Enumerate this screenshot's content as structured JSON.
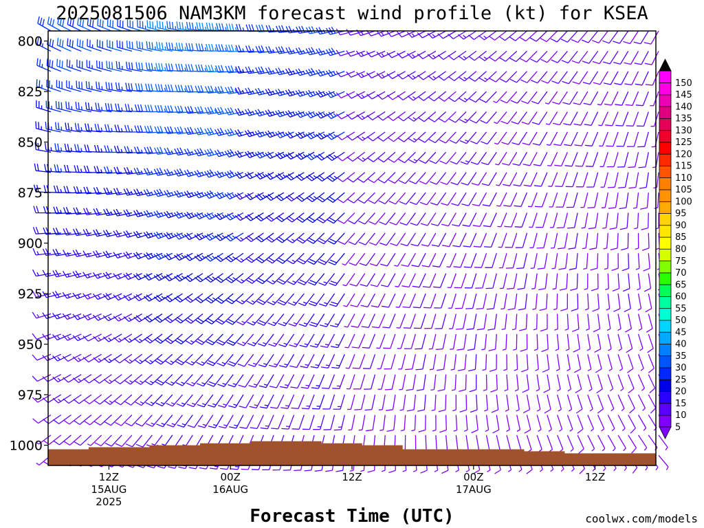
{
  "chart_data": {
    "type": "wind_barb_time_height",
    "title": "2025081506 NAM3KM forecast wind profile (kt) for KSEA",
    "xlabel": "Forecast Time (UTC)",
    "ylabel": "",
    "credit": "coolwx.com/models",
    "y_axis": {
      "reversed": true,
      "range": [
        1010,
        795
      ],
      "unit": "hPa",
      "ticks": [
        800,
        825,
        850,
        875,
        900,
        925,
        950,
        975,
        1000
      ]
    },
    "x_axis": {
      "range_forecast_hour": [
        0,
        60
      ],
      "ticks": [
        {
          "hour": 6,
          "lines": [
            "12Z",
            "15AUG",
            "2025"
          ]
        },
        {
          "hour": 18,
          "lines": [
            "00Z",
            "16AUG"
          ]
        },
        {
          "hour": 30,
          "lines": [
            "12Z"
          ]
        },
        {
          "hour": 42,
          "lines": [
            "00Z",
            "17AUG"
          ]
        },
        {
          "hour": 54,
          "lines": [
            "12Z"
          ]
        }
      ]
    },
    "barbs": {
      "forecast_hours": {
        "start": 0,
        "end": 60,
        "step": 1
      },
      "pressure_levels_hpa": {
        "start": 795,
        "end": 1005,
        "step": 10
      },
      "speed_field_kt": [
        {
          "from_hour": 0,
          "to_hour": 10,
          "top": 30,
          "bottom": 8
        },
        {
          "from_hour": 10,
          "to_hour": 20,
          "top": 35,
          "bottom": 12
        },
        {
          "from_hour": 20,
          "to_hour": 30,
          "top": 28,
          "bottom": 10
        },
        {
          "from_hour": 30,
          "to_hour": 45,
          "top": 12,
          "bottom": 7
        },
        {
          "from_hour": 45,
          "to_hour": 60,
          "top": 10,
          "bottom": 6
        }
      ],
      "direction_note": "northwesterly aloft early, backing to southerly/southwesterly late and near surface"
    },
    "terrain_surface_pressure_hpa": [
      {
        "hour": 0,
        "p": 1002
      },
      {
        "hour": 4,
        "p": 1001
      },
      {
        "hour": 10,
        "p": 1000
      },
      {
        "hour": 15,
        "p": 999
      },
      {
        "hour": 20,
        "p": 998
      },
      {
        "hour": 23,
        "p": 998
      },
      {
        "hour": 27,
        "p": 999
      },
      {
        "hour": 31,
        "p": 1000
      },
      {
        "hour": 35,
        "p": 1002
      },
      {
        "hour": 41,
        "p": 1002
      },
      {
        "hour": 47,
        "p": 1003
      },
      {
        "hour": 51,
        "p": 1004
      },
      {
        "hour": 55,
        "p": 1004
      },
      {
        "hour": 60,
        "p": 1004
      }
    ],
    "colorbar": {
      "levels": [
        5,
        10,
        15,
        20,
        25,
        30,
        35,
        40,
        45,
        50,
        55,
        60,
        65,
        70,
        75,
        80,
        85,
        90,
        95,
        100,
        105,
        110,
        115,
        120,
        125,
        130,
        135,
        140,
        145,
        150
      ],
      "colors": [
        "#7f00ff",
        "#5a00ff",
        "#2a00ff",
        "#0000e6",
        "#0028ff",
        "#0055ff",
        "#007fff",
        "#00aaff",
        "#00d4ff",
        "#00ffd4",
        "#00ff9f",
        "#00ff55",
        "#2aff00",
        "#7fff00",
        "#d4ff00",
        "#ffff00",
        "#ffe600",
        "#ffd400",
        "#ffaa00",
        "#ff9400",
        "#ff7f00",
        "#ff5500",
        "#ff2a00",
        "#ff0000",
        "#f0002a",
        "#e60055",
        "#e0007f",
        "#ee00b4",
        "#ff00e6",
        "#ff00ff"
      ],
      "under_color": "#8000ff",
      "over_color": "#000000"
    },
    "colors": {
      "terrain": "#a0522d",
      "credit": "#d02020"
    }
  }
}
